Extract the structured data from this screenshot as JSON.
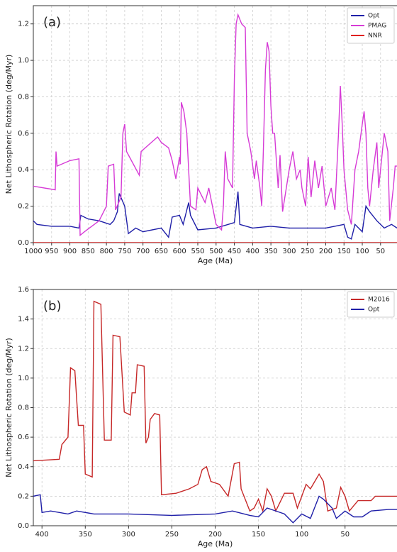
{
  "chart_data": [
    {
      "type": "line",
      "title": "(a)",
      "xlabel": "Age (Ma)",
      "ylabel": "Net Lithospheric Rotation (deg/Myr)",
      "xlim": [
        1000,
        5
      ],
      "ylim": [
        0,
        1.3
      ],
      "xticks": [
        1000,
        950,
        900,
        850,
        800,
        750,
        700,
        650,
        600,
        550,
        500,
        450,
        400,
        350,
        300,
        250,
        200,
        150,
        100,
        50
      ],
      "yticks": [
        {
          "value": 0,
          "label": "0.0"
        },
        0.2,
        0.4,
        0.6,
        0.8,
        {
          "value": 1,
          "label": "1.0"
        },
        1.2
      ],
      "grid": true,
      "legend": "upper right",
      "series": [
        {
          "name": "Opt",
          "color": "#1f1fa8",
          "x": [
            1000,
            990,
            950,
            900,
            875,
            870,
            850,
            820,
            790,
            780,
            770,
            765,
            750,
            740,
            720,
            700,
            650,
            630,
            620,
            600,
            590,
            575,
            570,
            550,
            500,
            450,
            440,
            435,
            400,
            350,
            300,
            250,
            200,
            150,
            140,
            130,
            120,
            100,
            90,
            80,
            60,
            40,
            20,
            5
          ],
          "values": [
            0.12,
            0.1,
            0.09,
            0.09,
            0.08,
            0.15,
            0.13,
            0.12,
            0.1,
            0.12,
            0.17,
            0.27,
            0.2,
            0.05,
            0.08,
            0.06,
            0.08,
            0.03,
            0.14,
            0.15,
            0.1,
            0.22,
            0.15,
            0.07,
            0.08,
            0.11,
            0.28,
            0.1,
            0.08,
            0.09,
            0.08,
            0.08,
            0.08,
            0.1,
            0.03,
            0.02,
            0.1,
            0.06,
            0.2,
            0.17,
            0.12,
            0.08,
            0.1,
            0.08
          ]
        },
        {
          "name": "PMAG",
          "color": "#d63bd6",
          "x": [
            1000,
            940,
            938,
            935,
            900,
            875,
            872,
            860,
            820,
            800,
            795,
            780,
            775,
            760,
            755,
            750,
            745,
            710,
            705,
            660,
            650,
            630,
            620,
            610,
            600,
            598,
            595,
            588,
            580,
            575,
            570,
            555,
            550,
            530,
            520,
            500,
            485,
            480,
            475,
            468,
            455,
            450,
            445,
            440,
            430,
            420,
            415,
            405,
            395,
            390,
            380,
            375,
            370,
            365,
            360,
            355,
            350,
            345,
            340,
            330,
            325,
            318,
            300,
            290,
            280,
            270,
            265,
            255,
            248,
            240,
            230,
            220,
            210,
            200,
            185,
            175,
            165,
            160,
            155,
            150,
            140,
            130,
            120,
            110,
            100,
            95,
            90,
            85,
            80,
            70,
            60,
            55,
            45,
            40,
            30,
            25,
            15,
            10,
            5
          ],
          "values": [
            0.31,
            0.29,
            0.5,
            0.42,
            0.45,
            0.46,
            0.04,
            0.06,
            0.12,
            0.2,
            0.42,
            0.43,
            0.18,
            0.25,
            0.6,
            0.65,
            0.5,
            0.37,
            0.5,
            0.58,
            0.55,
            0.52,
            0.45,
            0.35,
            0.47,
            0.43,
            0.77,
            0.72,
            0.6,
            0.4,
            0.2,
            0.18,
            0.3,
            0.22,
            0.3,
            0.1,
            0.07,
            0.2,
            0.5,
            0.35,
            0.3,
            0.9,
            1.2,
            1.25,
            1.2,
            1.18,
            0.6,
            0.5,
            0.35,
            0.45,
            0.3,
            0.2,
            0.55,
            0.95,
            1.1,
            1.05,
            0.75,
            0.6,
            0.6,
            0.3,
            0.48,
            0.17,
            0.4,
            0.5,
            0.35,
            0.4,
            0.3,
            0.2,
            0.47,
            0.25,
            0.45,
            0.3,
            0.42,
            0.2,
            0.3,
            0.18,
            0.6,
            0.86,
            0.65,
            0.4,
            0.18,
            0.1,
            0.4,
            0.5,
            0.65,
            0.72,
            0.6,
            0.3,
            0.2,
            0.4,
            0.55,
            0.3,
            0.5,
            0.6,
            0.5,
            0.12,
            0.3,
            0.42,
            0.42
          ]
        },
        {
          "name": "NNR",
          "color": "#e02020",
          "x": [
            1000,
            5
          ],
          "values": [
            0,
            0
          ]
        }
      ]
    },
    {
      "type": "line",
      "title": "(b)",
      "xlabel": "Age (Ma)",
      "ylabel": "Net Lithospheric Rotation (deg/Myr)",
      "xlim": [
        410,
        -10
      ],
      "ylim": [
        0,
        1.6
      ],
      "xticks": [
        400,
        350,
        300,
        250,
        200,
        150,
        100,
        50
      ],
      "yticks": [
        {
          "value": 0,
          "label": "0.0"
        },
        0.2,
        0.4,
        0.6,
        0.8,
        {
          "value": 1,
          "label": "1.0"
        },
        1.2,
        1.4,
        1.6
      ],
      "grid": true,
      "legend": "upper right",
      "series": [
        {
          "name": "M2016",
          "color": "#c62828",
          "x": [
            410,
            380,
            377,
            370,
            367,
            362,
            358,
            352,
            350,
            342,
            340,
            332,
            328,
            320,
            318,
            310,
            305,
            298,
            296,
            292,
            290,
            282,
            280,
            277,
            275,
            270,
            264,
            262,
            245,
            230,
            220,
            215,
            210,
            205,
            195,
            185,
            178,
            172,
            170,
            160,
            155,
            150,
            145,
            140,
            135,
            130,
            120,
            110,
            105,
            95,
            90,
            85,
            80,
            75,
            70,
            60,
            55,
            50,
            45,
            35,
            20,
            15,
            0,
            -10
          ],
          "values": [
            0.44,
            0.45,
            0.55,
            0.6,
            1.07,
            1.05,
            0.68,
            0.68,
            0.35,
            0.33,
            1.52,
            1.5,
            0.58,
            0.58,
            1.29,
            1.28,
            0.77,
            0.75,
            0.9,
            0.9,
            1.09,
            1.08,
            0.56,
            0.6,
            0.72,
            0.76,
            0.75,
            0.21,
            0.22,
            0.25,
            0.28,
            0.38,
            0.4,
            0.3,
            0.28,
            0.2,
            0.42,
            0.43,
            0.25,
            0.1,
            0.12,
            0.18,
            0.1,
            0.25,
            0.2,
            0.1,
            0.22,
            0.22,
            0.12,
            0.28,
            0.25,
            0.3,
            0.35,
            0.3,
            0.1,
            0.12,
            0.26,
            0.2,
            0.1,
            0.17,
            0.17,
            0.2,
            0.2,
            0.2
          ]
        },
        {
          "name": "Opt",
          "color": "#1f1fa8",
          "x": [
            410,
            402,
            400,
            390,
            370,
            360,
            340,
            300,
            250,
            200,
            180,
            160,
            150,
            140,
            120,
            110,
            100,
            90,
            80,
            75,
            65,
            60,
            50,
            40,
            30,
            20,
            0,
            -10
          ],
          "values": [
            0.2,
            0.21,
            0.09,
            0.1,
            0.08,
            0.1,
            0.08,
            0.08,
            0.07,
            0.08,
            0.1,
            0.07,
            0.06,
            0.12,
            0.08,
            0.02,
            0.08,
            0.05,
            0.2,
            0.18,
            0.12,
            0.05,
            0.1,
            0.06,
            0.06,
            0.1,
            0.11,
            0.11
          ]
        }
      ]
    }
  ]
}
